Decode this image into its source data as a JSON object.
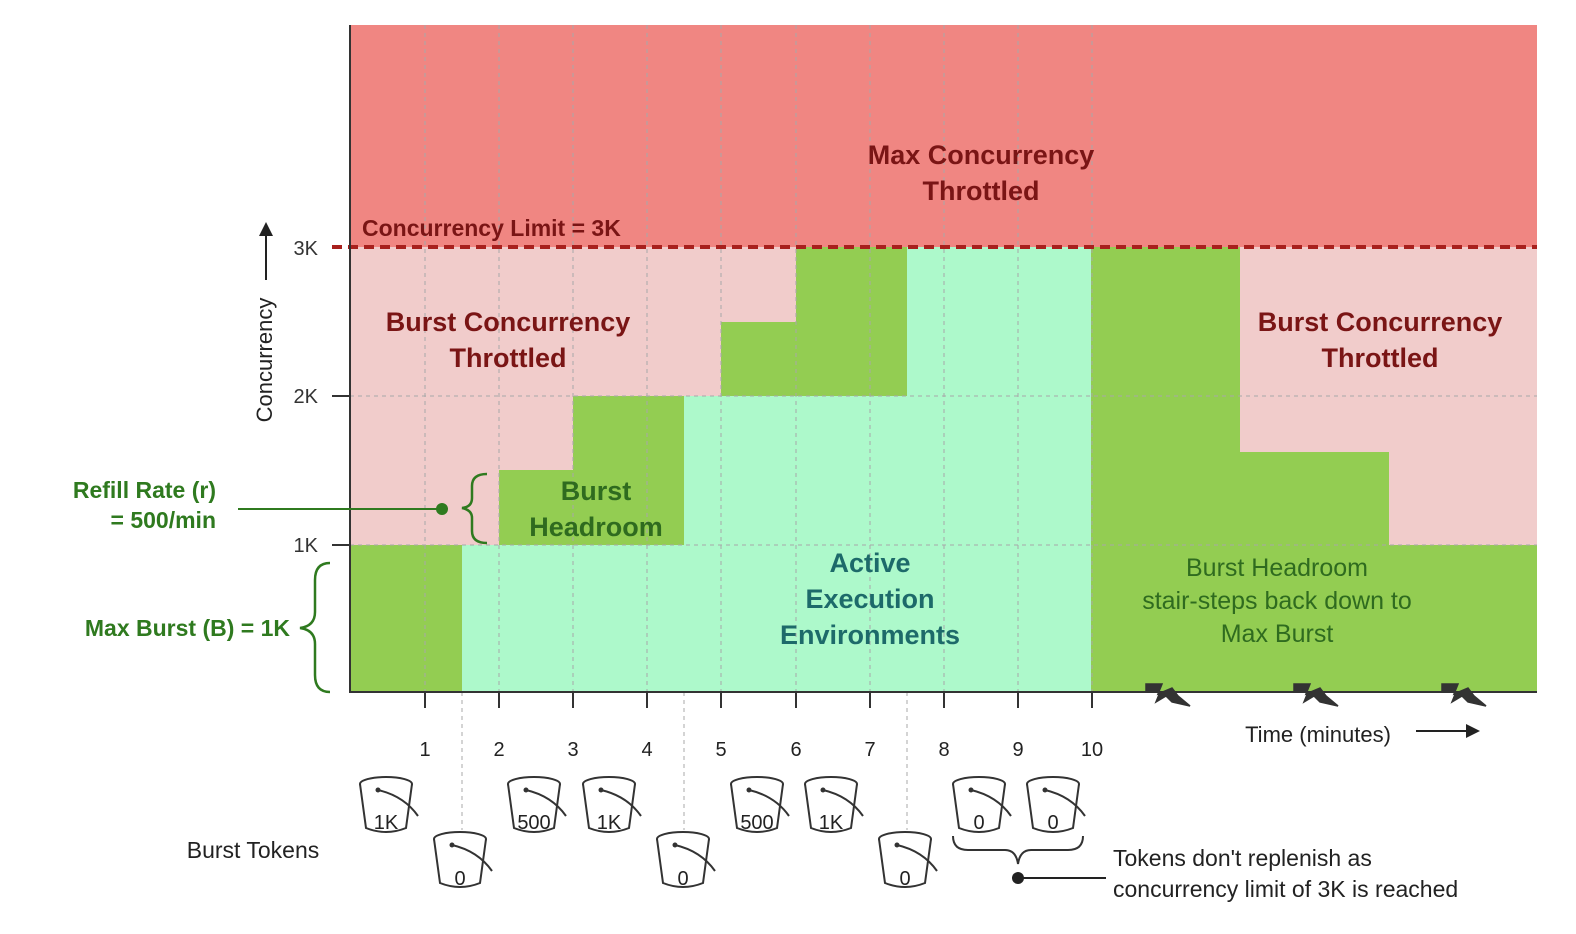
{
  "colors": {
    "max_throttled": "#f08682",
    "burst_throttled": "#f1cccb",
    "burst_headroom": "#93cd52",
    "active": "#adf9cb",
    "limit_line": "#a8201d",
    "dark_red_text": "#7a1515",
    "green_text": "#2f6b1f",
    "teal_text": "#1d6a6a",
    "axis": "#333333"
  },
  "zones": {
    "max_throttled": [
      "Max Concurrency",
      "Throttled"
    ],
    "limit_label": "Concurrency Limit = 3K",
    "burst_throttled_left": [
      "Burst Concurrency",
      "Throttled"
    ],
    "burst_throttled_right": [
      "Burst Concurrency",
      "Throttled"
    ],
    "burst_headroom": [
      "Burst",
      "Headroom"
    ],
    "active": [
      "Active",
      "Execution",
      "Environments"
    ],
    "stair_steps": [
      "Burst Headroom",
      "stair-steps back down to",
      "Max Burst"
    ]
  },
  "axes": {
    "y_label": "Concurrency",
    "y_ticks": [
      "1K",
      "2K",
      "3K"
    ],
    "x_label": "Time (minutes)",
    "x_ticks": [
      "1",
      "2",
      "3",
      "4",
      "5",
      "6",
      "7",
      "8",
      "9",
      "10"
    ]
  },
  "annotations": {
    "refill_rate": [
      "Refill Rate (r)",
      "= 500/min"
    ],
    "max_burst": "Max Burst (B) = 1K",
    "burst_tokens": "Burst Tokens",
    "tokens_note": [
      "Tokens don't replenish as",
      "concurrency limit of 3K is reached"
    ]
  },
  "buckets": {
    "top": [
      "1K",
      "500",
      "1K",
      "500",
      "1K",
      "0",
      "0"
    ],
    "bottom": [
      "0",
      "0",
      "0"
    ]
  }
}
